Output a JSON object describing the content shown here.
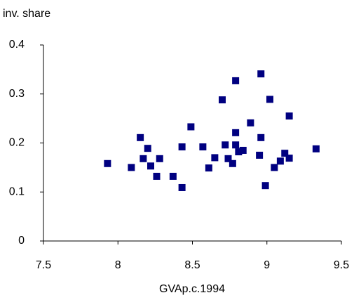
{
  "chart_data": {
    "type": "scatter",
    "ylabel": "inv. share",
    "xlabel": "GVAp.c.1994",
    "x": [
      7.93,
      8.09,
      8.15,
      8.17,
      8.2,
      8.22,
      8.26,
      8.28,
      8.37,
      8.43,
      8.43,
      8.49,
      8.57,
      8.61,
      8.65,
      8.7,
      8.72,
      8.74,
      8.77,
      8.79,
      8.79,
      8.79,
      8.81,
      8.84,
      8.89,
      8.95,
      8.96,
      8.96,
      8.99,
      9.02,
      9.05,
      9.09,
      9.12,
      9.15,
      9.15,
      9.33
    ],
    "values": [
      0.158,
      0.15,
      0.211,
      0.168,
      0.189,
      0.153,
      0.132,
      0.168,
      0.132,
      0.192,
      0.109,
      0.233,
      0.192,
      0.149,
      0.17,
      0.288,
      0.196,
      0.168,
      0.158,
      0.327,
      0.196,
      0.221,
      0.182,
      0.185,
      0.241,
      0.175,
      0.211,
      0.341,
      0.113,
      0.289,
      0.15,
      0.163,
      0.179,
      0.169,
      0.255,
      0.188
    ],
    "color": "#000080",
    "xlim": [
      7.5,
      9.5
    ],
    "xticks": [
      7.5,
      8,
      8.5,
      9,
      9.5
    ],
    "ylim": [
      0,
      0.4
    ],
    "yticks": [
      {
        "value": 0,
        "label": "0"
      },
      0.1,
      0.2,
      0.3,
      0.4
    ]
  }
}
